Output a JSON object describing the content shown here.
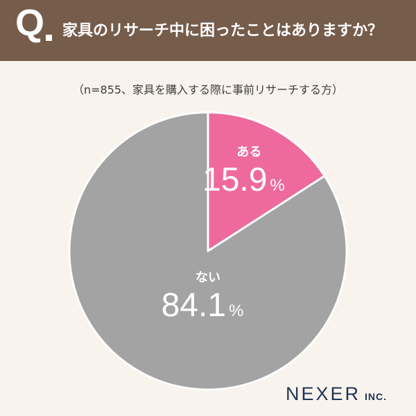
{
  "header": {
    "q_mark": "Q",
    "question": "家具のリサーチ中に困ったことはありますか？"
  },
  "note": "（n=855、家具を購入する際に事前リサーチする方）",
  "chart_data": {
    "type": "pie",
    "title": "家具のリサーチ中に困ったことはありますか？",
    "slices": [
      {
        "label": "ある",
        "value": 15.9,
        "display": "15.9",
        "unit": "%",
        "color": "#ee6a9c"
      },
      {
        "label": "ない",
        "value": 84.1,
        "display": "84.1",
        "unit": "%",
        "color": "#a3a3a3"
      }
    ],
    "start": "12 o'clock",
    "direction": "clockwise"
  },
  "logo": {
    "main": "NEXER",
    "inc": "INC."
  },
  "colors": {
    "header_bg": "#755c4b",
    "background": "#f9f3ee",
    "brand": "#1f3553"
  }
}
